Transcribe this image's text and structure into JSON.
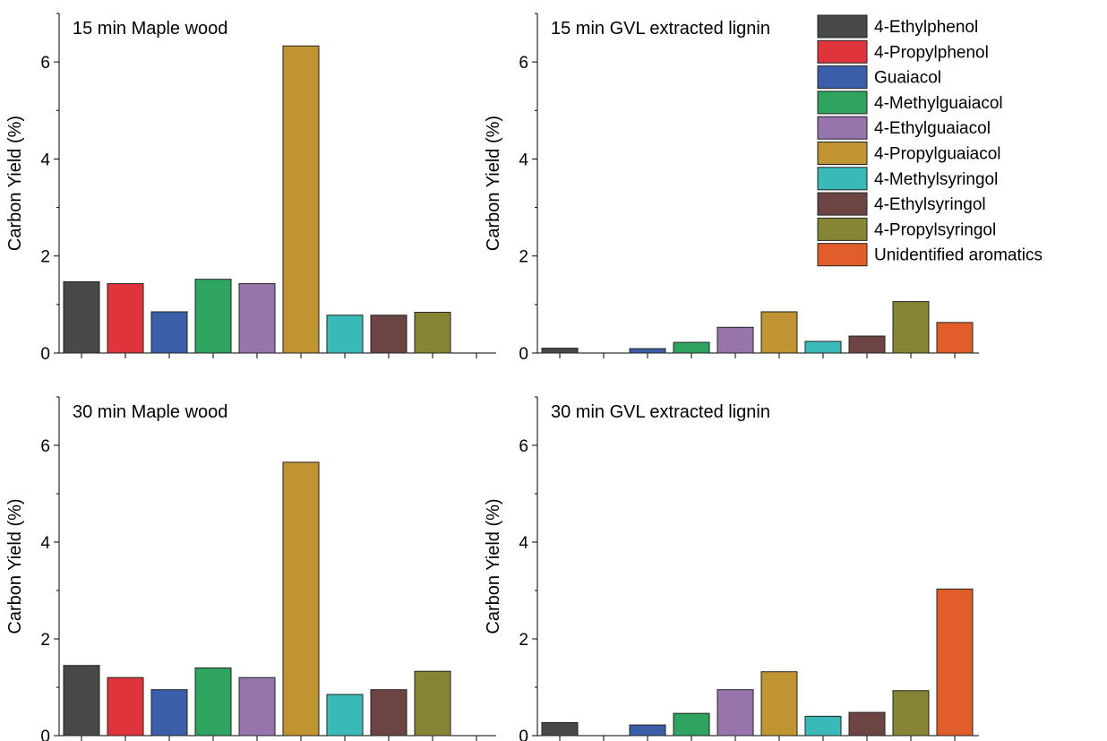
{
  "chart_data": [
    {
      "type": "bar",
      "title": "15 min Maple wood",
      "ylabel": "Carbon Yield (%)",
      "xlabel": "",
      "ylim": [
        0,
        7
      ],
      "yticks": [
        0,
        2,
        4,
        6
      ],
      "categories": [
        "4-Ethylphenol",
        "4-Propylphenol",
        "Guaiacol",
        "4-Methylguaiacol",
        "4-Ethylguaiacol",
        "4-Propylguaiacol",
        "4-Methylsyringol",
        "4-Ethylsyringol",
        "4-Propylsyringol",
        "Unidentified aromatics"
      ],
      "values": [
        1.47,
        1.43,
        0.85,
        1.52,
        1.43,
        6.33,
        0.78,
        0.78,
        0.84,
        null
      ]
    },
    {
      "type": "bar",
      "title": "15 min GVL extracted lignin",
      "ylabel": "Carbon Yield (%)",
      "xlabel": "",
      "ylim": [
        0,
        7
      ],
      "yticks": [
        0,
        2,
        4,
        6
      ],
      "categories": [
        "4-Ethylphenol",
        "4-Propylphenol",
        "Guaiacol",
        "4-Methylguaiacol",
        "4-Ethylguaiacol",
        "4-Propylguaiacol",
        "4-Methylsyringol",
        "4-Ethylsyringol",
        "4-Propylsyringol",
        "Unidentified aromatics"
      ],
      "values": [
        0.1,
        0,
        0.09,
        0.22,
        0.53,
        0.85,
        0.24,
        0.35,
        1.06,
        0.63
      ]
    },
    {
      "type": "bar",
      "title": "30 min Maple wood",
      "ylabel": "Carbon Yield (%)",
      "xlabel": "",
      "ylim": [
        0,
        7
      ],
      "yticks": [
        0,
        2,
        4,
        6
      ],
      "categories": [
        "4-Ethylphenol",
        "4-Propylphenol",
        "Guaiacol",
        "4-Methylguaiacol",
        "4-Ethylguaiacol",
        "4-Propylguaiacol",
        "4-Methylsyringol",
        "4-Ethylsyringol",
        "4-Propylsyringol",
        "Unidentified aromatics"
      ],
      "values": [
        1.45,
        1.2,
        0.95,
        1.4,
        1.2,
        5.65,
        0.85,
        0.95,
        1.33,
        null
      ]
    },
    {
      "type": "bar",
      "title": "30 min GVL extracted lignin",
      "ylabel": "Carbon Yield (%)",
      "xlabel": "",
      "ylim": [
        0,
        7
      ],
      "yticks": [
        0,
        2,
        4,
        6
      ],
      "categories": [
        "4-Ethylphenol",
        "4-Propylphenol",
        "Guaiacol",
        "4-Methylguaiacol",
        "4-Ethylguaiacol",
        "4-Propylguaiacol",
        "4-Methylsyringol",
        "4-Ethylsyringol",
        "4-Propylsyringol",
        "Unidentified aromatics"
      ],
      "values": [
        0.27,
        0,
        0.22,
        0.46,
        0.95,
        1.32,
        0.4,
        0.48,
        0.93,
        3.03
      ]
    }
  ],
  "legend": {
    "placement": "top-right",
    "entries": [
      {
        "label": "4-Ethylphenol",
        "color": "#474947"
      },
      {
        "label": "4-Propylphenol",
        "color": "#e0343c"
      },
      {
        "label": "Guaiacol",
        "color": "#3a5fa8"
      },
      {
        "label": "4-Methylguaiacol",
        "color": "#2ea460"
      },
      {
        "label": "4-Ethylguaiacol",
        "color": "#9874ad"
      },
      {
        "label": "4-Propylguaiacol",
        "color": "#c09333"
      },
      {
        "label": "4-Methylsyringol",
        "color": "#39bab8"
      },
      {
        "label": "4-Ethylsyringol",
        "color": "#6d4444"
      },
      {
        "label": "4-Propylsyringol",
        "color": "#868535"
      },
      {
        "label": "Unidentified aromatics",
        "color": "#e15d2a"
      }
    ]
  }
}
